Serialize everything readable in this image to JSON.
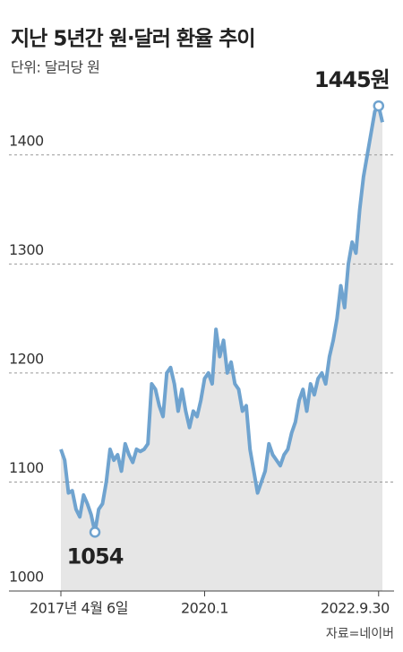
{
  "chart_data": {
    "type": "line",
    "title": "지난 5년간 원·달러 환율 추이",
    "subtitle": "단위: 달러당 원",
    "source": "자료=네이버",
    "annotations": [
      "1054",
      "1445원"
    ],
    "categories": [
      "2017년 4월 6일",
      null,
      null,
      null,
      null,
      null,
      null,
      null,
      null,
      null,
      null,
      null,
      null,
      null,
      null,
      null,
      null,
      null,
      null,
      null,
      null,
      null,
      null,
      null,
      null,
      null,
      null,
      null,
      null,
      null,
      null,
      null,
      null,
      null,
      null,
      null,
      null,
      null,
      "2020.1",
      null,
      null,
      null,
      null,
      null,
      null,
      null,
      null,
      null,
      null,
      null,
      null,
      null,
      null,
      null,
      null,
      null,
      null,
      null,
      null,
      null,
      null,
      null,
      null,
      null,
      null,
      null,
      null,
      null,
      null,
      null,
      null,
      null,
      null,
      null,
      null,
      null,
      null,
      null,
      null,
      null,
      null,
      null,
      null,
      null,
      "2022.9.30",
      null
    ],
    "values": [
      1130,
      1120,
      1090,
      1092,
      1075,
      1068,
      1088,
      1080,
      1070,
      1054,
      1075,
      1080,
      1100,
      1130,
      1120,
      1125,
      1110,
      1135,
      1125,
      1118,
      1130,
      1128,
      1130,
      1135,
      1190,
      1185,
      1170,
      1160,
      1200,
      1205,
      1190,
      1165,
      1185,
      1165,
      1150,
      1165,
      1160,
      1175,
      1195,
      1200,
      1190,
      1240,
      1215,
      1230,
      1200,
      1210,
      1190,
      1185,
      1165,
      1170,
      1130,
      1110,
      1090,
      1100,
      1110,
      1135,
      1125,
      1120,
      1115,
      1125,
      1130,
      1145,
      1155,
      1175,
      1185,
      1165,
      1190,
      1180,
      1195,
      1200,
      1190,
      1215,
      1230,
      1250,
      1280,
      1260,
      1300,
      1320,
      1310,
      1350,
      1380,
      1400,
      1420,
      1440,
      1445,
      1430
    ],
    "color": "#6fa3cf",
    "area_color": "#e6e6e6",
    "ylim": [
      1000,
      1450
    ],
    "yticks": [
      1000,
      1100,
      1200,
      1300,
      1400
    ],
    "grid": true
  }
}
